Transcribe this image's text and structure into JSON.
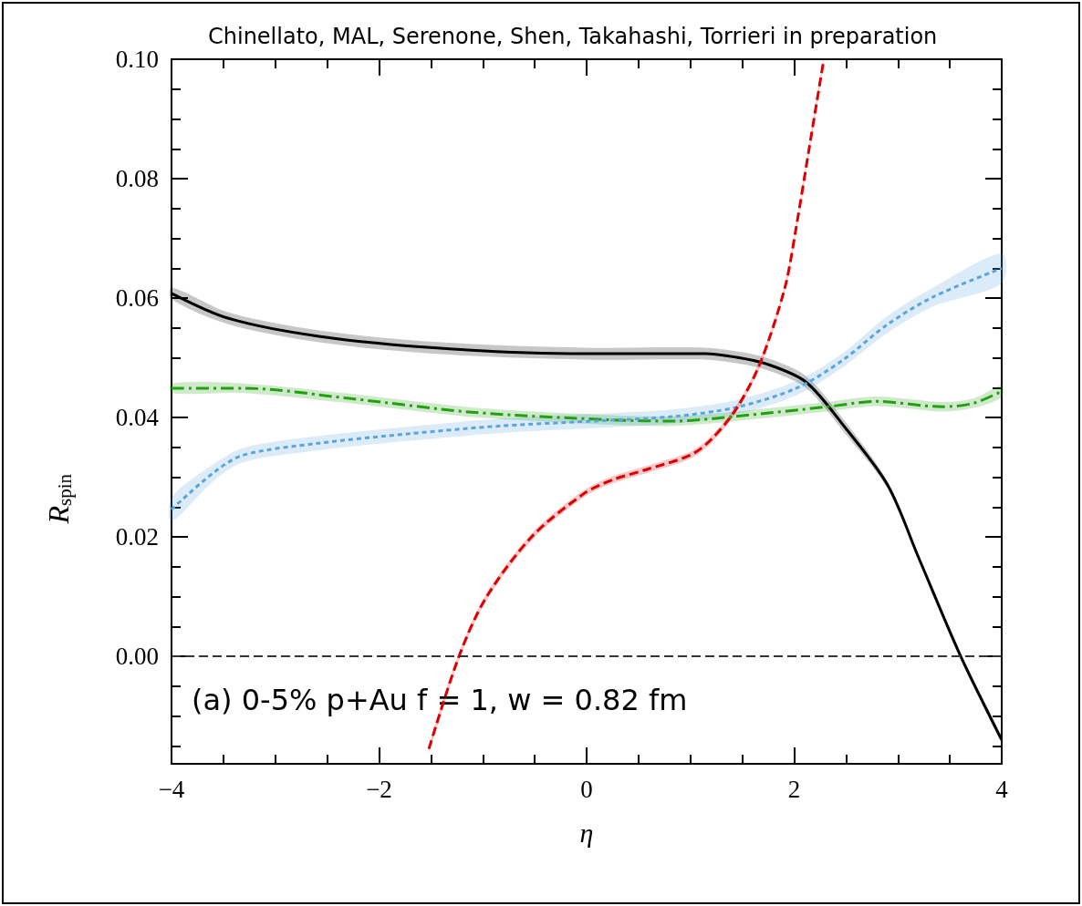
{
  "chart_data": {
    "type": "line",
    "xlabel": "η",
    "ylabel": "R$_{spin}$",
    "xlim": [
      -4,
      4
    ],
    "ylim": [
      -0.018,
      0.1
    ],
    "xticks": [
      {
        "value": -4,
        "label": "−4"
      },
      {
        "value": -3.5,
        "label": null
      },
      {
        "value": -3,
        "label": null
      },
      {
        "value": -2.5,
        "label": null
      },
      {
        "value": -2,
        "label": "−2"
      },
      {
        "value": -1.5,
        "label": null
      },
      {
        "value": -1,
        "label": null
      },
      {
        "value": -0.5,
        "label": null
      },
      0,
      {
        "value": 0.5,
        "label": null
      },
      {
        "value": 1,
        "label": null
      },
      {
        "value": 1.5,
        "label": null
      },
      2,
      {
        "value": 2.5,
        "label": null
      },
      {
        "value": 3,
        "label": null
      },
      {
        "value": 3.5,
        "label": null
      },
      4
    ],
    "yticks": [
      {
        "value": -0.015,
        "label": null
      },
      {
        "value": -0.01,
        "label": null
      },
      {
        "value": -0.005,
        "label": null
      },
      {
        "value": 0,
        "label": "0.00"
      },
      {
        "value": 0.005,
        "label": null
      },
      {
        "value": 0.01,
        "label": null
      },
      {
        "value": 0.015,
        "label": null
      },
      {
        "value": 0.02,
        "label": "0.02"
      },
      {
        "value": 0.025,
        "label": null
      },
      {
        "value": 0.03,
        "label": null
      },
      {
        "value": 0.035,
        "label": null
      },
      {
        "value": 0.04,
        "label": "0.04"
      },
      {
        "value": 0.045,
        "label": null
      },
      {
        "value": 0.05,
        "label": null
      },
      {
        "value": 0.055,
        "label": null
      },
      {
        "value": 0.06,
        "label": "0.06"
      },
      {
        "value": 0.065,
        "label": null
      },
      {
        "value": 0.07,
        "label": null
      },
      {
        "value": 0.075,
        "label": null
      },
      {
        "value": 0.08,
        "label": "0.08"
      },
      {
        "value": 0.085,
        "label": null
      },
      {
        "value": 0.09,
        "label": null
      },
      {
        "value": 0.095,
        "label": null
      },
      {
        "value": 0.1,
        "label": "0.10"
      }
    ],
    "grid": false,
    "marker": "none",
    "ref_lines": [
      {
        "axis": "y",
        "value": 0,
        "color": "#333333",
        "line_style": "dashed"
      }
    ],
    "annotations": [
      "Chinellato, MAL, Serenone, Shen, Takahashi, Torrieri in preparation",
      "(a) 0-5% p+Au f = 1, w = 0.82 fm"
    ],
    "series": [
      {
        "color": "#000000",
        "line_style": "solid",
        "x": [
          -4,
          -3.45,
          -2.58,
          -1.41,
          -0.03,
          1.14,
          1.44,
          1.73,
          2.11,
          2.46,
          2.9,
          3.2,
          3.6,
          4
        ],
        "values": [
          0.0608,
          0.0566,
          0.0536,
          0.0516,
          0.0507,
          0.0507,
          0.0501,
          0.049,
          0.046,
          0.039,
          0.0287,
          0.0165,
          0.0002,
          -0.014
        ],
        "lower": [
          0.0598,
          0.0556,
          0.0526,
          0.0506,
          0.0497,
          0.0497,
          0.0491,
          0.048,
          0.045,
          0.038,
          0.0281,
          0.016,
          -0.0003,
          -0.0145
        ],
        "upper": [
          0.0618,
          0.0576,
          0.0546,
          0.0526,
          0.0517,
          0.0517,
          0.0511,
          0.05,
          0.047,
          0.04,
          0.0293,
          0.017,
          0.0007,
          -0.0135
        ]
      },
      {
        "color": "#22a010",
        "line_style": "dashdot",
        "x": [
          -4,
          -3.3,
          -2.29,
          -1.11,
          0.24,
          0.85,
          1.44,
          2.32,
          2.79,
          3.43,
          3.73,
          4
        ],
        "values": [
          0.0449,
          0.0449,
          0.0432,
          0.0409,
          0.0396,
          0.0394,
          0.0402,
          0.0418,
          0.0427,
          0.0418,
          0.0424,
          0.0444
        ],
        "lower": [
          0.0441,
          0.0441,
          0.0424,
          0.0401,
          0.0388,
          0.0386,
          0.0394,
          0.041,
          0.0419,
          0.041,
          0.0416,
          0.0434
        ],
        "upper": [
          0.0457,
          0.0457,
          0.044,
          0.0417,
          0.0404,
          0.0402,
          0.041,
          0.0426,
          0.0435,
          0.0426,
          0.0432,
          0.0454
        ]
      },
      {
        "color": "#5aa6dc",
        "line_style": "dotted",
        "x": [
          -4,
          -3.6,
          -3.31,
          -2.58,
          -1.7,
          -0.82,
          0.06,
          0.85,
          1.44,
          2.02,
          2.46,
          2.9,
          3.34,
          4
        ],
        "values": [
          0.0246,
          0.0307,
          0.0337,
          0.0357,
          0.0373,
          0.0386,
          0.0394,
          0.0402,
          0.0417,
          0.0449,
          0.0495,
          0.0556,
          0.0602,
          0.065
        ],
        "lower": [
          0.0226,
          0.0293,
          0.0325,
          0.0345,
          0.0361,
          0.0374,
          0.0382,
          0.039,
          0.0405,
          0.0437,
          0.0483,
          0.0542,
          0.0586,
          0.0625
        ],
        "upper": [
          0.0266,
          0.0321,
          0.0349,
          0.0369,
          0.0385,
          0.0398,
          0.0406,
          0.0414,
          0.0429,
          0.0461,
          0.0507,
          0.057,
          0.0618,
          0.0675
        ]
      },
      {
        "color": "#dd0000",
        "line_style": "dashed",
        "x": [
          -1.52,
          -1.23,
          -0.97,
          -0.53,
          -0.03,
          0.24,
          0.56,
          1.0,
          1.2,
          1.44,
          1.67,
          1.91,
          2.02,
          2.14,
          2.28
        ],
        "values": [
          -0.0155,
          0,
          0.0098,
          0.02,
          0.0272,
          0.0295,
          0.0312,
          0.0337,
          0.0363,
          0.0414,
          0.049,
          0.0617,
          0.0719,
          0.0846,
          0.0994
        ],
        "lower": [
          -0.0161,
          -0.0006,
          0.0092,
          0.0194,
          0.0266,
          0.0289,
          0.0306,
          0.0331,
          0.0357,
          0.0408,
          0.0484,
          0.0611,
          0.0713,
          0.084,
          0.0988
        ],
        "upper": [
          -0.0149,
          0.0006,
          0.0104,
          0.0206,
          0.0278,
          0.0301,
          0.0318,
          0.0343,
          0.0369,
          0.042,
          0.0496,
          0.0623,
          0.0725,
          0.0852,
          0.1
        ]
      }
    ]
  }
}
